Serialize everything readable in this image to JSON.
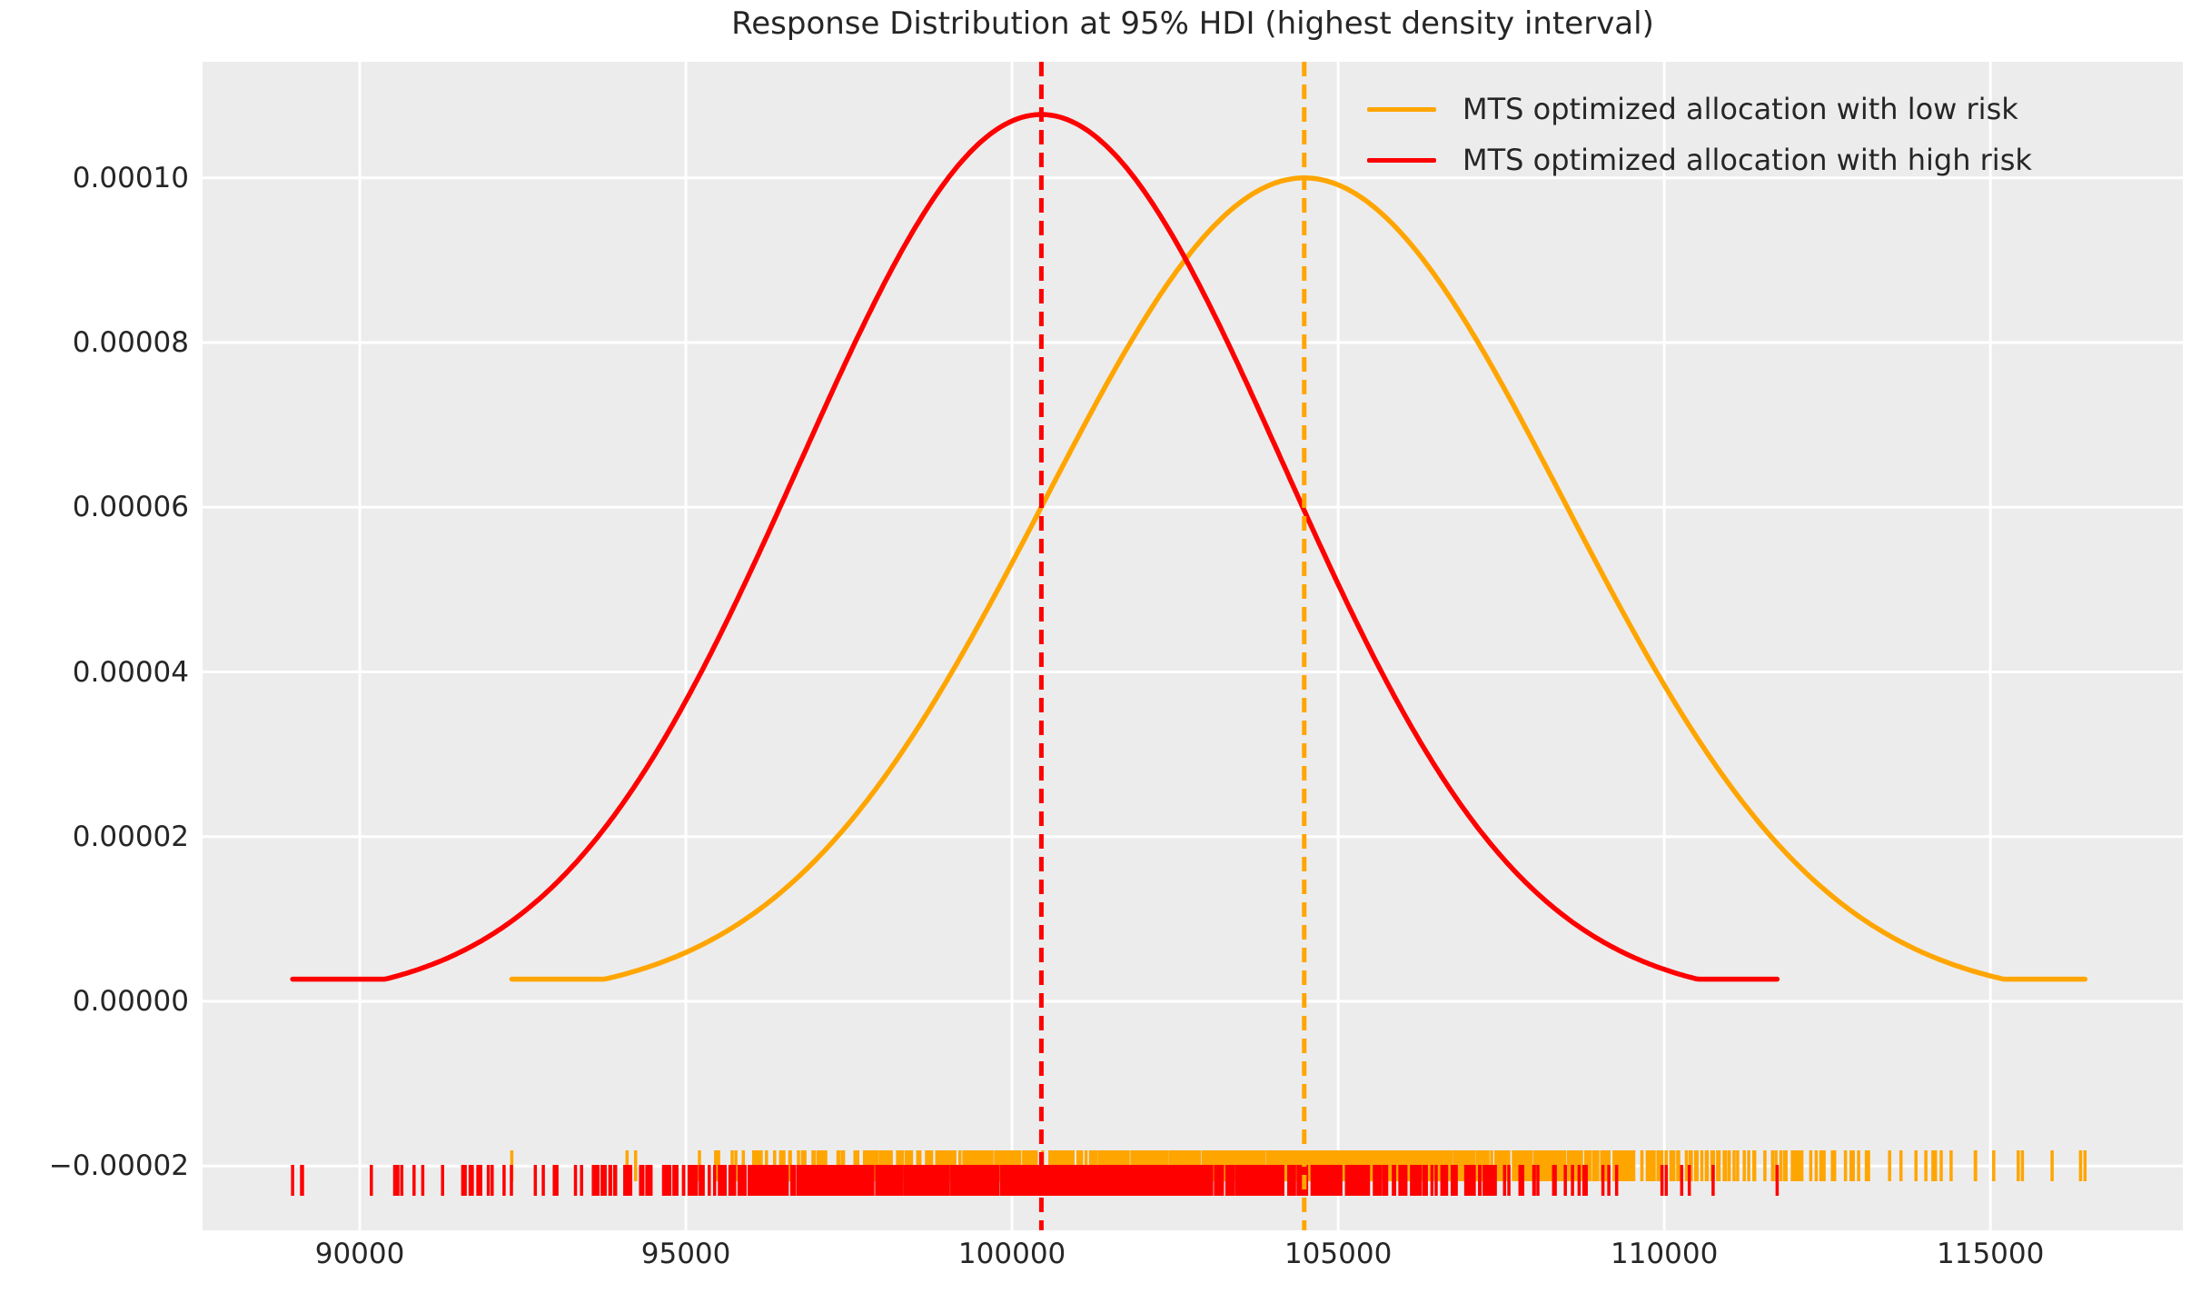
{
  "chart_data": {
    "type": "line",
    "subtype": "kde-distribution",
    "title": "Response Distribution at 95% HDI (highest density interval)",
    "xlabel": "",
    "ylabel": "",
    "xlim": [
      87590,
      117950
    ],
    "ylim": [
      -2.78e-05,
      0.0001141
    ],
    "grid": true,
    "legend_position": "upper right",
    "legend_frame": false,
    "colors": {
      "plot_background": "#ececec",
      "figure_background": "#ffffff",
      "grid": "#ffffff",
      "text": "#262626"
    },
    "x_ticks": {
      "values": [
        90000,
        95000,
        100000,
        105000,
        110000,
        115000
      ],
      "labels": [
        "90000",
        "95000",
        "100000",
        "105000",
        "110000",
        "115000"
      ]
    },
    "y_ticks": {
      "values": [
        -2e-05,
        0.0,
        2e-05,
        4e-05,
        6e-05,
        8e-05,
        0.0001
      ],
      "labels": [
        "−0.00002",
        "0.00000",
        "0.00002",
        "0.00004",
        "0.00006",
        "0.00008",
        "0.00010"
      ]
    },
    "series": [
      {
        "id": "low-risk",
        "name": "MTS optimized allocation with low risk",
        "color": "#FFA500",
        "mean": 104480,
        "std": 3990,
        "peak_density": 0.0001,
        "data_min": 92330,
        "data_max": 116450,
        "tail_density": 2.7e-06,
        "mean_line_x": 104480,
        "mean_line_style": "dashed",
        "rug_n": 1000,
        "rug_seed": 7
      },
      {
        "id": "high-risk",
        "name": "MTS optimized allocation with high risk",
        "color": "#FF0000",
        "mean": 100450,
        "std": 3705,
        "peak_density": 0.0001077,
        "data_min": 88970,
        "data_max": 111730,
        "tail_density": 2.7e-06,
        "mean_line_x": 100450,
        "mean_line_style": "dashed",
        "rug_n": 1000,
        "rug_seed": 13
      }
    ]
  }
}
